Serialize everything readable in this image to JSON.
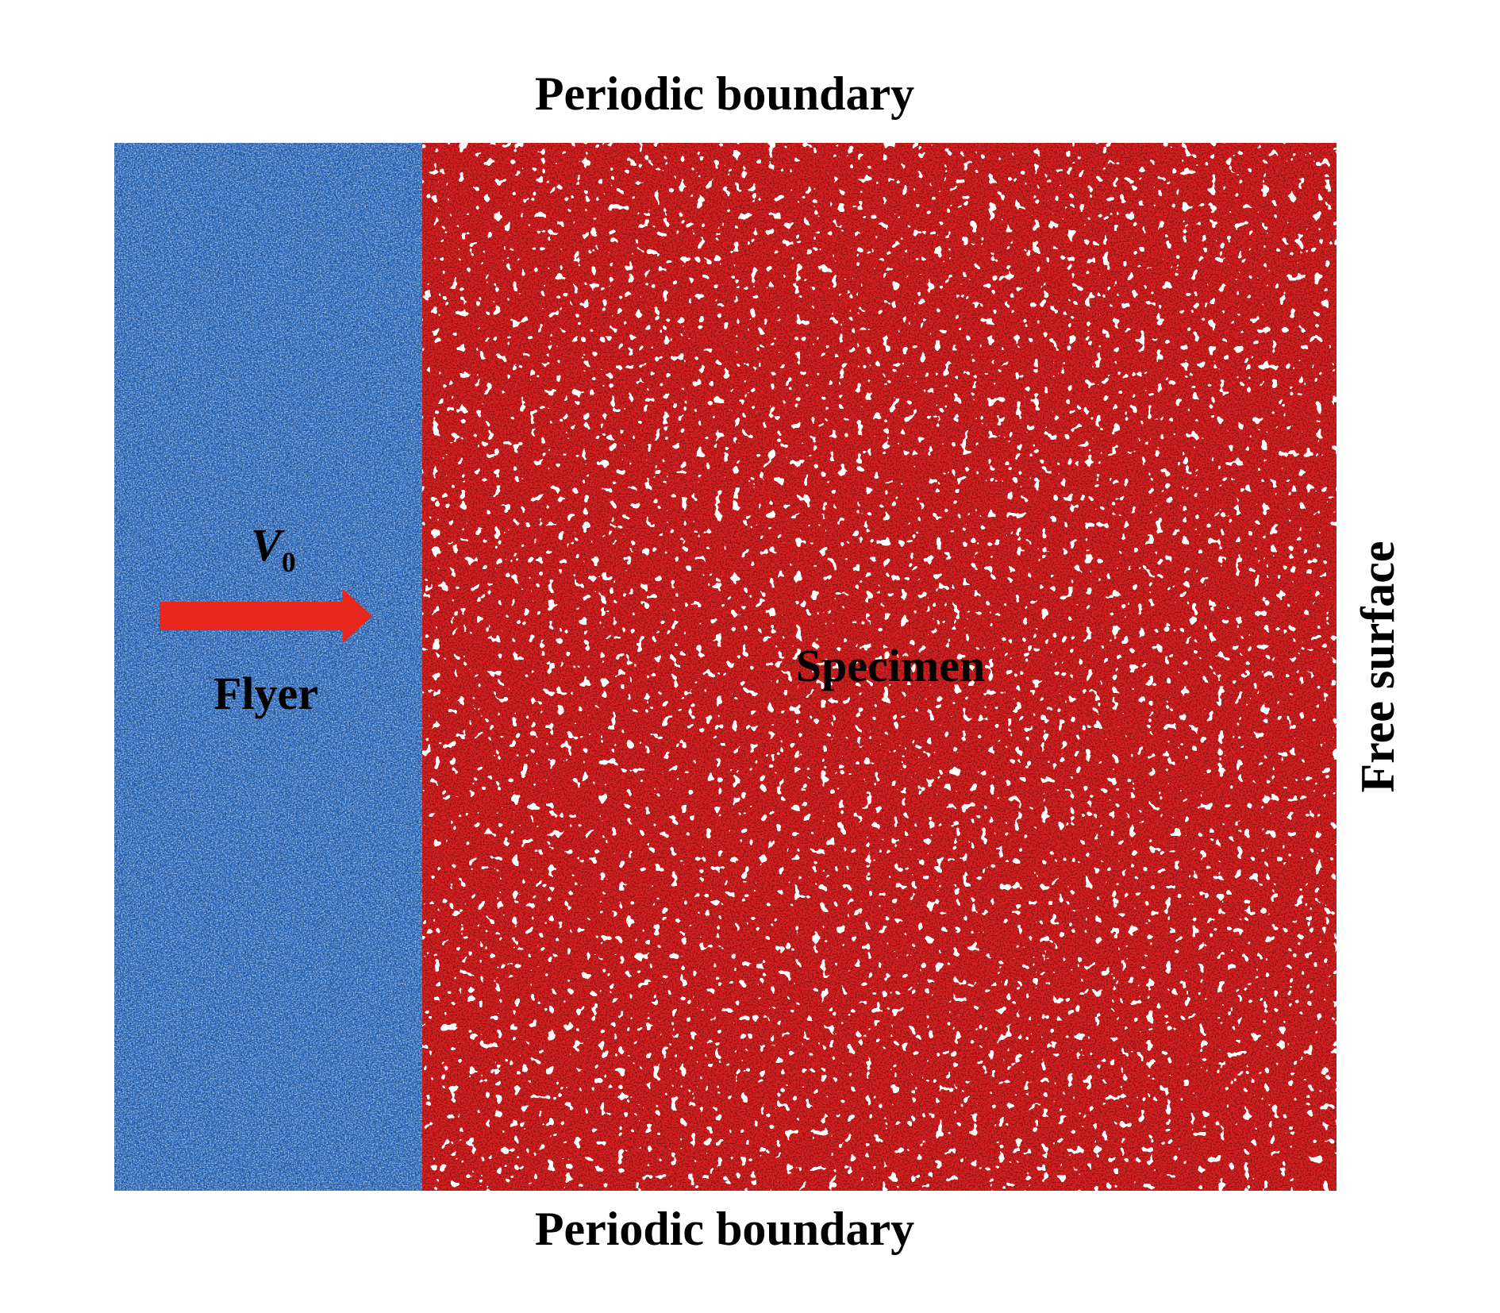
{
  "top_label": "Periodic boundary",
  "bottom_label": "Periodic boundary",
  "right_label": "Free surface",
  "flyer": {
    "label": "Flyer",
    "velocity": {
      "symbol": "V",
      "subscript": "0"
    }
  },
  "specimen": {
    "label": "Specimen"
  }
}
